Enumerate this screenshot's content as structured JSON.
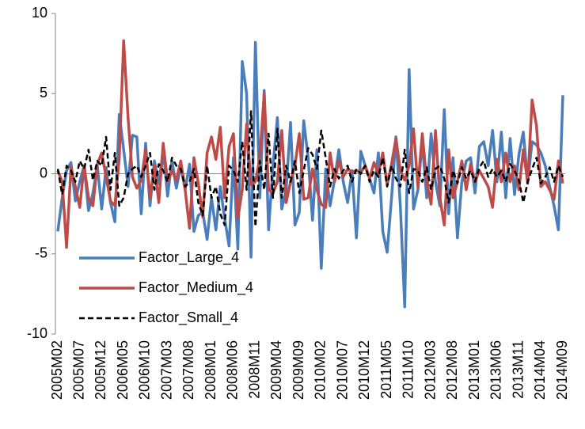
{
  "chart_data": {
    "type": "line",
    "categories": [
      "2005M02",
      null,
      null,
      null,
      null,
      "2005M07",
      null,
      null,
      null,
      null,
      "2005M12",
      null,
      null,
      null,
      null,
      "2006M05",
      null,
      null,
      null,
      null,
      "2006M10",
      null,
      null,
      null,
      null,
      "2007M03",
      null,
      null,
      null,
      null,
      "2007M08",
      null,
      null,
      null,
      null,
      "2008M01",
      null,
      null,
      null,
      null,
      "2008M06",
      null,
      null,
      null,
      null,
      "2008M11",
      null,
      null,
      null,
      null,
      "2009M04",
      null,
      null,
      null,
      null,
      "2009M09",
      null,
      null,
      null,
      null,
      "2010M02",
      null,
      null,
      null,
      null,
      "2010M07",
      null,
      null,
      null,
      null,
      "2010M12",
      null,
      null,
      null,
      null,
      "2011M05",
      null,
      null,
      null,
      null,
      "2011M10",
      null,
      null,
      null,
      null,
      "2012M03",
      null,
      null,
      null,
      null,
      "2012M08",
      null,
      null,
      null,
      null,
      "2013M01",
      null,
      null,
      null,
      null,
      "2013M06",
      null,
      null,
      null,
      null,
      "2013M11",
      null,
      null,
      null,
      null,
      "2014M04",
      null,
      null,
      null,
      null,
      "2014M09"
    ],
    "series": [
      {
        "name": "Factor_Large_4",
        "color": "#4a7ebb",
        "dashed": false,
        "values": [
          -3.6,
          -1.5,
          0.2,
          0.7,
          -1.7,
          -0.5,
          0.5,
          -2.3,
          -1.2,
          0.5,
          -2.2,
          0.4,
          -1.8,
          -3.0,
          3.7,
          1.5,
          -0.8,
          2.4,
          2.3,
          -2.5,
          1.9,
          -2.0,
          0.8,
          -0.6,
          1.5,
          -1.4,
          0.8,
          -0.9,
          0.5,
          -1.0,
          0.6,
          -3.6,
          -2.6,
          -2.4,
          -4.1,
          -1.5,
          -3.5,
          -0.8,
          -2.8,
          -4.5,
          1.0,
          -4.7,
          7.0,
          5.0,
          -5.2,
          8.2,
          -1.5,
          5.2,
          -3.5,
          0.5,
          3.5,
          -2.2,
          -1.0,
          3.2,
          -3.2,
          -2.4,
          3.3,
          1.0,
          -2.9,
          1.5,
          -5.9,
          0.3,
          -2.0,
          -0.4,
          1.5,
          -0.5,
          -1.8,
          0.2,
          -4.0,
          1.4,
          0.5,
          -0.3,
          -1.2,
          1.3,
          -3.6,
          -4.9,
          -1.5,
          2.3,
          -2.0,
          -8.3,
          6.5,
          -2.2,
          -1.0,
          2.0,
          -1.5,
          2.5,
          -0.5,
          -2.0,
          4.0,
          -2.5,
          1.0,
          -4.0,
          -0.5,
          0.8,
          1.0,
          -1.2,
          1.7,
          2.0,
          0.5,
          2.7,
          -0.5,
          2.6,
          -1.5,
          2.2,
          -1.3,
          1.2,
          2.6,
          -0.5,
          2.0,
          1.8,
          1.3,
          0.5,
          -0.8,
          -2.0,
          -3.5,
          4.9
        ]
      },
      {
        "name": "Factor_Medium_4",
        "color": "#be4b48",
        "dashed": false,
        "values": [
          0.2,
          -0.5,
          -4.6,
          0.4,
          -0.8,
          -2.1,
          0.5,
          -1.5,
          -2.0,
          0.6,
          1.3,
          -0.2,
          -1.7,
          -2.0,
          1.0,
          8.3,
          3.5,
          -0.2,
          -0.9,
          -0.4,
          1.5,
          -1.5,
          0.5,
          -1.8,
          1.9,
          -0.5,
          0.2,
          -0.4,
          0.8,
          -1.0,
          -3.4,
          1.0,
          -0.6,
          -2.7,
          1.3,
          2.3,
          0.9,
          2.9,
          -1.5,
          1.7,
          2.5,
          -2.8,
          -1.0,
          3.1,
          -0.7,
          -0.5,
          1.0,
          5.0,
          -1.0,
          -1.2,
          -0.5,
          2.7,
          -1.8,
          -0.5,
          0.5,
          2.5,
          -1.6,
          -1.5,
          0.3,
          -1.0,
          -1.9,
          -2.1,
          1.3,
          -0.5,
          0.8,
          -0.2,
          0.3,
          0.1,
          0.2,
          0.1,
          0.5,
          -0.3,
          0.7,
          0.0,
          1.3,
          -0.7,
          0.6,
          2.2,
          0.2,
          -0.4,
          0.5,
          2.8,
          -0.8,
          2.5,
          -0.5,
          -1.9,
          2.7,
          -1.5,
          -3.2,
          1.5,
          -1.5,
          -0.5,
          0.8,
          -1.0,
          0.6,
          -0.5,
          0.2,
          -0.3,
          -0.8,
          -2.1,
          0.9,
          -0.5,
          1.3,
          -0.5,
          0.5,
          -1.0,
          1.5,
          -0.6,
          4.6,
          3.0,
          -0.8,
          -0.5,
          -1.0,
          -1.6,
          0.8,
          -0.6
        ]
      },
      {
        "name": "Factor_Small_4",
        "color": "#000000",
        "dashed": true,
        "values": [
          0.3,
          -1.3,
          0.5,
          0.2,
          -0.5,
          0.8,
          0.3,
          1.5,
          -0.4,
          0.8,
          0.5,
          2.3,
          -1.0,
          1.3,
          -2.0,
          -1.5,
          0.0,
          0.3,
          0.5,
          -0.2,
          0.5,
          1.3,
          -1.0,
          0.6,
          0.2,
          -0.5,
          1.0,
          0.5,
          0.3,
          -0.8,
          -0.5,
          0.3,
          -1.8,
          -2.6,
          0.5,
          -1.5,
          -0.8,
          -2.5,
          -3.2,
          0.5,
          0.2,
          -0.5,
          2.0,
          -1.0,
          3.9,
          -3.3,
          0.8,
          -1.0,
          2.5,
          -1.5,
          2.8,
          -1.5,
          0.5,
          -0.5,
          0.8,
          -1.2,
          0.2,
          1.6,
          1.2,
          0.3,
          2.7,
          1.0,
          -0.8,
          0.3,
          -0.3,
          0.2,
          0.5,
          -0.5,
          0.3,
          0.0,
          0.5,
          -0.5,
          0.2,
          -0.2,
          1.0,
          -0.8,
          0.5,
          -0.3,
          -0.8,
          1.5,
          -1.2,
          0.3,
          0.2,
          -0.5,
          0.4,
          -1.0,
          0.3,
          0.5,
          -0.3,
          -1.8,
          0.2,
          -0.6,
          0.4,
          -0.3,
          0.2,
          -0.5,
          0.4,
          0.8,
          -0.2,
          0.3,
          -0.2,
          0.2,
          -0.5,
          0.6,
          0.2,
          -0.4,
          -1.8,
          -0.5,
          0.3,
          1.0,
          -0.6,
          -0.2,
          0.4,
          -0.5,
          0.5,
          -0.2
        ]
      }
    ],
    "ylim": [
      -10,
      10
    ],
    "yticks": [
      -10,
      -5,
      0,
      5,
      10
    ],
    "grid": false,
    "legend": "lower left"
  }
}
